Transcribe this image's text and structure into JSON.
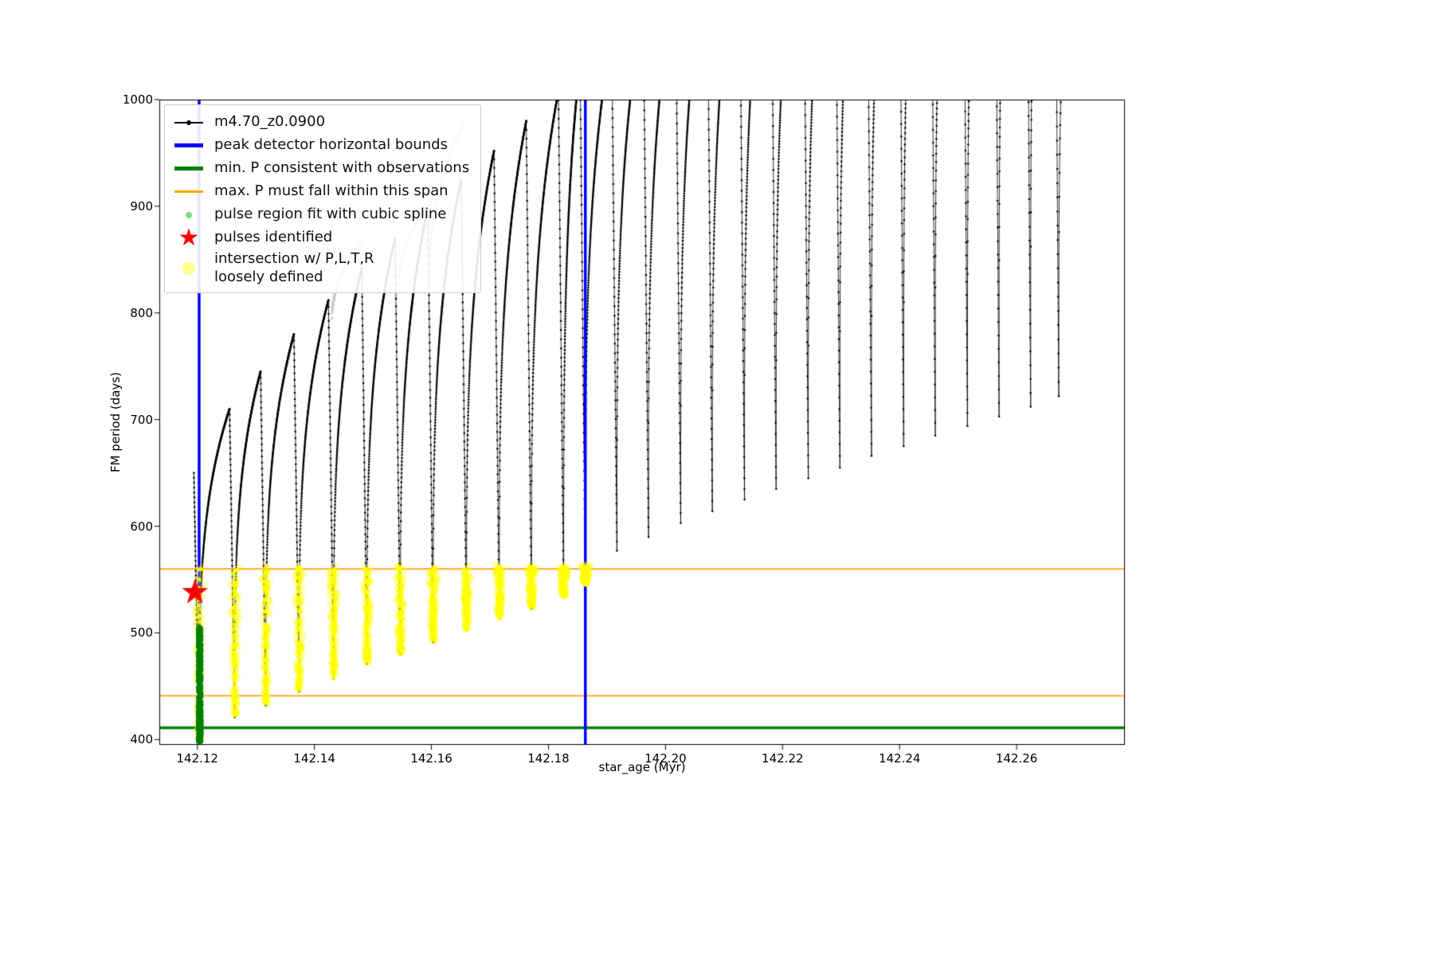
{
  "chart_data": {
    "type": "line",
    "title": "",
    "xlabel": "star_age (Myr)",
    "ylabel": "FM period (days)",
    "xlim": [
      142.1135,
      142.2785
    ],
    "ylim": [
      395,
      1000
    ],
    "grid": false,
    "legend_position": "upper left",
    "xticks": {
      "values": [
        142.12,
        142.14,
        142.16,
        142.18,
        142.2,
        142.22,
        142.24,
        142.26
      ],
      "labels": [
        "142.12",
        "142.14",
        "142.16",
        "142.18",
        "142.20",
        "142.22",
        "142.24",
        "142.26"
      ]
    },
    "yticks": {
      "values": [
        400,
        500,
        600,
        700,
        800,
        900,
        1000
      ],
      "labels": [
        "400",
        "500",
        "600",
        "700",
        "800",
        "900",
        "1000"
      ]
    },
    "legend": [
      {
        "label": "m4.70_z0.0900",
        "swatch": "line-dot",
        "color": "#000000",
        "swatch_name": "series-line-swatch"
      },
      {
        "label": "peak detector horizontal bounds",
        "swatch": "thick-line",
        "color": "#0000ff",
        "swatch_name": "blue-bounds-line-swatch"
      },
      {
        "label": "min. P consistent with observations",
        "swatch": "thick-line",
        "color": "#008000",
        "swatch_name": "green-min-line-swatch"
      },
      {
        "label": "max. P must fall within this span",
        "swatch": "line",
        "color": "#ffa500",
        "swatch_name": "orange-span-line-swatch"
      },
      {
        "label": "pulse region fit with cubic spline",
        "swatch": "dot-small",
        "color": "#7ddc7d",
        "swatch_name": "pulse-region-dot-swatch"
      },
      {
        "label": "pulses identified",
        "swatch": "star",
        "color": "#ff0000",
        "swatch_name": "pulse-star-icon"
      },
      {
        "label": "intersection w/ P,L,T,R",
        "label2": "loosely defined",
        "swatch": "dot-large",
        "color": "rgba(255,255,0,0.45)",
        "swatch_name": "intersection-dot-swatch"
      }
    ],
    "vlines": [
      {
        "x": 142.1203,
        "color": "#0000ff",
        "lw": 3.5
      },
      {
        "x": 142.1863,
        "color": "#0000ff",
        "lw": 3.5
      }
    ],
    "hlines": [
      {
        "y": 411,
        "color": "#008000",
        "lw": 3.5
      },
      {
        "y": 560,
        "color": "#ffa500",
        "lw": 1.8
      },
      {
        "y": 441,
        "color": "#ffa500",
        "lw": 1.8
      }
    ],
    "series": {
      "name": "m4.70_z0.0900",
      "color": "#000000",
      "pre_peak": {
        "t": 142.1196,
        "y": 650
      },
      "fall_width": 0.0009,
      "rise_exponent": 0.28,
      "cycles": [
        [
          142.1203,
          398,
          710
        ],
        [
          142.1264,
          421,
          745
        ],
        [
          142.1317,
          432,
          780
        ],
        [
          142.1374,
          445,
          812
        ],
        [
          142.1433,
          457,
          842
        ],
        [
          142.149,
          471,
          870
        ],
        [
          142.1547,
          480,
          898
        ],
        [
          142.1603,
          491,
          925
        ],
        [
          142.166,
          503,
          952
        ],
        [
          142.1716,
          513,
          980
        ],
        [
          142.1771,
          523,
          1008
        ],
        [
          142.1826,
          534,
          1035
        ],
        [
          142.1863,
          545,
          1062
        ],
        [
          142.1917,
          577,
          1090
        ],
        [
          142.1971,
          590,
          1118
        ],
        [
          142.2026,
          603,
          1146
        ],
        [
          142.208,
          614,
          1174
        ],
        [
          142.2135,
          625,
          1202
        ],
        [
          142.2189,
          635,
          1230
        ],
        [
          142.2244,
          645,
          1258
        ],
        [
          142.2298,
          655,
          1286
        ],
        [
          142.2352,
          666,
          1314
        ],
        [
          142.2407,
          675,
          1342
        ],
        [
          142.2461,
          685,
          1370
        ],
        [
          142.2516,
          694,
          1398
        ],
        [
          142.257,
          703,
          1426
        ],
        [
          142.2624,
          712,
          1454
        ],
        [
          142.2672,
          722,
          1482
        ]
      ]
    },
    "ghost_arcs": [
      {
        "t0": 142.143,
        "y0": 795,
        "t1": 142.1482,
        "y1": 868,
        "k": 0.5
      },
      {
        "t0": 142.1545,
        "y0": 828,
        "t1": 142.1602,
        "y1": 906,
        "k": 0.5
      },
      {
        "t0": 142.1598,
        "y0": 845,
        "t1": 142.1658,
        "y1": 982,
        "k": 0.5
      }
    ],
    "scatter": {
      "yellow_upper_bound": 560,
      "yellow_color": "#ffff00",
      "green_cluster": {
        "t": 142.1204,
        "y_min": 398,
        "y_max": 506,
        "color": "#008000"
      },
      "star": {
        "t": 142.1196,
        "y": 538,
        "color": "#ff0000"
      }
    },
    "colors": {
      "series": "#000000",
      "ghost": "#c9c9c9",
      "bounds": "#0000ff",
      "min_p": "#008000",
      "max_p_span": "#ffa500",
      "pulses": "#ff0000",
      "intersection": "#ffff00"
    }
  }
}
